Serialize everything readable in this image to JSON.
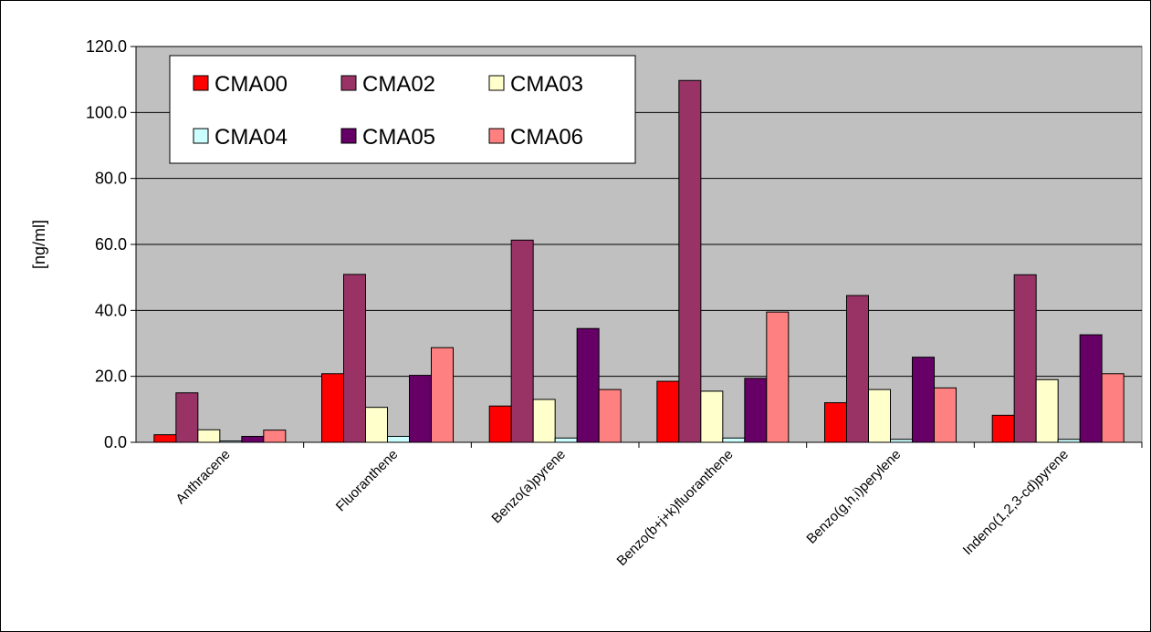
{
  "chart_data": {
    "type": "bar",
    "ylabel": "[ng/ml]",
    "ylim": [
      0,
      120
    ],
    "yticks": [
      "0.0",
      "20.0",
      "40.0",
      "60.0",
      "80.0",
      "100.0",
      "120.0"
    ],
    "grid": true,
    "legend_position": "top-left",
    "plot_background": "#c0c0c0",
    "categories": [
      "Anthracene",
      "Fluoranthene",
      "Benzo(a)pyrene",
      "Benzo(b+j+k)fluoranthene",
      "Benzo(g,h,i)perylene",
      "Indeno(1,2,3-cd)pyrene"
    ],
    "series": [
      {
        "name": "CMA00",
        "color": "#ff0000",
        "values": [
          2.3,
          20.8,
          11.0,
          18.5,
          12.0,
          8.2
        ]
      },
      {
        "name": "CMA02",
        "color": "#993366",
        "values": [
          15.0,
          50.9,
          61.3,
          109.7,
          44.5,
          50.8
        ]
      },
      {
        "name": "CMA03",
        "color": "#ffffcc",
        "values": [
          3.8,
          10.6,
          13.0,
          15.5,
          16.0,
          19.0
        ]
      },
      {
        "name": "CMA04",
        "color": "#ccffff",
        "values": [
          0.4,
          1.8,
          1.3,
          1.3,
          0.9,
          0.9
        ]
      },
      {
        "name": "CMA05",
        "color": "#660066",
        "values": [
          1.8,
          20.3,
          34.5,
          19.4,
          25.8,
          32.6
        ]
      },
      {
        "name": "CMA06",
        "color": "#ff8080",
        "values": [
          3.7,
          28.7,
          16.0,
          39.5,
          16.5,
          20.8
        ]
      }
    ]
  }
}
